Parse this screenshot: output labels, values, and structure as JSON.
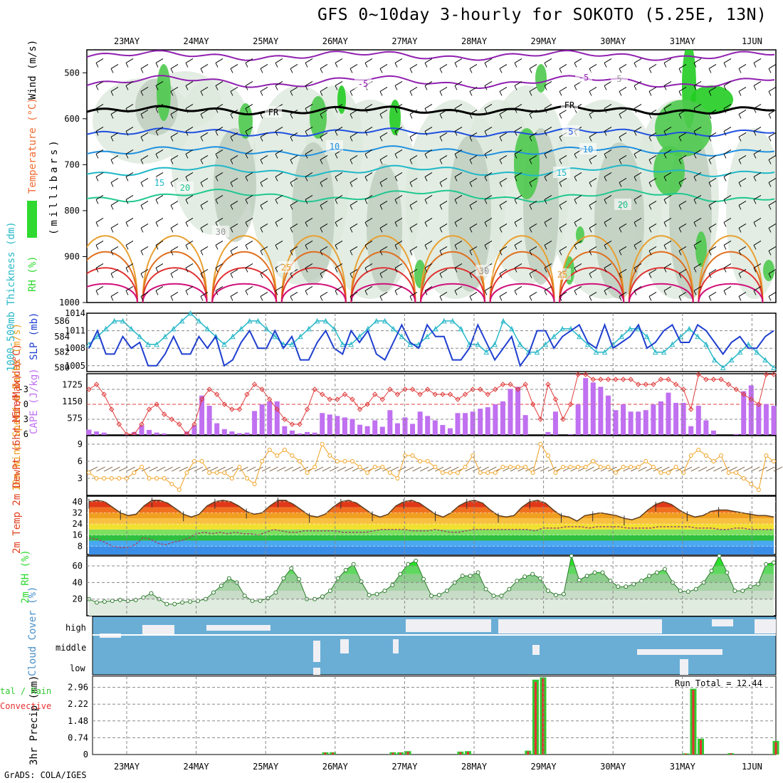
{
  "title": "GFS 0~10day 3-hourly for SOKOTO (5.25E, 13N)",
  "footer": "GrADS: COLA/IGES",
  "dates": [
    "23MAY",
    "24MAY",
    "25MAY",
    "26MAY",
    "27MAY",
    "28MAY",
    "29MAY",
    "30MAY",
    "31MAY",
    "1JUN"
  ],
  "colors": {
    "rh_green": "#2fd92f",
    "slp_blue": "#1f3fcf",
    "thick_cyan": "#28b8c8",
    "li_red": "#e03c3c",
    "cape_purple": "#c070f0",
    "wind_orange": "#f0a020",
    "rain_green": "#32c832",
    "conv_red": "#e83030",
    "cloud_blue": "#6aaed6"
  },
  "chart_data": [
    {
      "type": "heatmap",
      "panel": "cross-section",
      "ylabel_wind": "Wind (m/s)",
      "ylabel_temp": "Temperature (°C)",
      "ylabel_rh": "RH (%)",
      "ylabel_p": "(millibars)",
      "yticks": [
        500,
        600,
        700,
        800,
        900,
        1000
      ],
      "ylim": [
        1000,
        450
      ],
      "contour_labels": [
        "-5",
        "-5",
        "FR",
        "FR",
        "5",
        "10",
        "10",
        "15",
        "15",
        "20",
        "20",
        "25",
        "25",
        "30",
        "30",
        "5"
      ]
    },
    {
      "type": "line",
      "panel": "slp-thickness",
      "ylabel_left": "1000-500mb Thickness (dm)",
      "ylabel_right": "SLP (mb)",
      "yticks_left": [
        580,
        582,
        584,
        586
      ],
      "yticks_right": [
        1005,
        1008,
        1011,
        1014
      ],
      "series": [
        {
          "name": "SLP",
          "values": [
            1008,
            1011,
            1007,
            1007,
            1010,
            1008,
            1009,
            1005,
            1005,
            1007,
            1010,
            1007,
            1007,
            1010,
            1008,
            1010,
            1005,
            1006,
            1009,
            1011,
            1008,
            1008,
            1011,
            1008,
            1010,
            1006,
            1006,
            1009,
            1011,
            1008,
            1007,
            1011,
            1009,
            1011,
            1007,
            1006,
            1009,
            1012,
            1009,
            1008,
            1012,
            1010,
            1010,
            1006,
            1006,
            1008,
            1012,
            1009,
            1006,
            1008,
            1010,
            1005,
            1007,
            1011,
            1011,
            1008,
            1010,
            1011,
            1012,
            1009,
            1008,
            1012,
            1008,
            1009,
            1010,
            1012,
            1008,
            1009,
            1011,
            1012,
            1009,
            1009,
            1012,
            1011,
            1009,
            1007,
            1009,
            1010,
            1008,
            1008,
            1010,
            1011
          ]
        },
        {
          "name": "1000-500mb Thickness",
          "values": [
            583,
            584,
            585,
            586,
            586,
            585,
            584,
            583,
            583,
            584,
            585,
            586,
            587,
            586,
            585,
            584,
            583,
            584,
            585,
            586,
            586,
            585,
            584,
            583,
            583,
            584,
            585,
            586,
            586,
            585,
            583,
            583,
            584,
            585,
            586,
            586,
            585,
            584,
            583,
            583,
            584,
            585,
            586,
            586,
            585,
            583,
            583,
            582,
            583,
            586,
            585,
            583,
            582,
            582,
            583,
            584,
            585,
            585,
            584,
            583,
            582,
            582,
            583,
            584,
            585,
            585,
            584,
            582,
            582,
            583,
            584,
            585,
            584,
            583,
            581,
            580,
            581,
            582,
            583,
            582,
            581,
            580
          ]
        }
      ]
    },
    {
      "type": "bar",
      "panel": "cape-li",
      "ylabel_li": "Lifted Index",
      "ylabel_cape": "CAPE (J/kg)",
      "yticks_li": [
        "-3",
        "0",
        "3",
        "6"
      ],
      "yticks_cape": [
        "1725",
        "1150",
        "575"
      ],
      "series": [
        {
          "name": "CAPE",
          "values": [
            180,
            120,
            80,
            0,
            0,
            30,
            100,
            330,
            170,
            80,
            50,
            0,
            0,
            120,
            330,
            1350,
            1000,
            400,
            200,
            120,
            60,
            80,
            820,
            1050,
            1150,
            1150,
            300,
            150,
            50,
            100,
            80,
            750,
            700,
            650,
            600,
            550,
            350,
            300,
            500,
            280,
            850,
            400,
            600,
            380,
            800,
            650,
            500,
            340,
            230,
            750,
            750,
            800,
            900,
            950,
            1050,
            1150,
            1580,
            1650,
            680,
            0,
            0,
            100,
            800,
            0,
            20,
            1050,
            1950,
            1800,
            1650,
            1350,
            850,
            1050,
            800,
            800,
            850,
            1050,
            1150,
            1450,
            1100,
            1100,
            300,
            1000,
            500,
            150,
            0,
            0,
            30,
            1500,
            1700,
            1050,
            1060,
            1000
          ]
        },
        {
          "name": "Lifted Index",
          "values": [
            -3,
            -4,
            -2,
            1,
            4,
            6,
            6,
            4,
            1,
            0,
            2,
            3,
            4,
            6,
            4,
            -1,
            -3,
            -2,
            0,
            1,
            1,
            -2,
            -4,
            -3,
            -1,
            1,
            3,
            4,
            4,
            1,
            -3,
            -2,
            -1,
            -1,
            -2,
            -1,
            1,
            0,
            -2,
            -1,
            -3,
            -2,
            -3,
            -3,
            -2,
            -3,
            -2,
            -2,
            -2,
            -1,
            -2,
            -3,
            -3,
            -2,
            -3,
            -4,
            -4,
            -3,
            -4,
            0,
            3,
            -4,
            -1,
            3,
            0,
            -6,
            -6,
            -5,
            -5,
            -5,
            -5,
            -5,
            -5,
            -4,
            -4,
            -4,
            -5,
            -5,
            -4,
            -3,
            1,
            -6,
            -5,
            -5,
            -5,
            -4,
            -3,
            -2,
            -1,
            0,
            -6,
            -6
          ]
        }
      ]
    },
    {
      "type": "line",
      "panel": "10m-wind",
      "ylabel": "10m Wind Speed & Barbs (m/s)",
      "yticks": [
        3,
        6,
        9
      ],
      "series": [
        {
          "name": "10m Wind Speed",
          "values": [
            4,
            3,
            3,
            3,
            3,
            3,
            4,
            5,
            3,
            3,
            3,
            2,
            1,
            4,
            6,
            6,
            4,
            4,
            4,
            3,
            5,
            3,
            2,
            6,
            8,
            7,
            8,
            7,
            6,
            4,
            5,
            9,
            7,
            6,
            6,
            6,
            5,
            4,
            5,
            5,
            4,
            3,
            7,
            7,
            6,
            6,
            5,
            4,
            4,
            4,
            5,
            7,
            4,
            4,
            4,
            5,
            5,
            5,
            5,
            4,
            9,
            7,
            4,
            5,
            5,
            5,
            5,
            6,
            5,
            5,
            4,
            5,
            5,
            5,
            6,
            5,
            4,
            4,
            5,
            4,
            7,
            8,
            7,
            6,
            7,
            4,
            4,
            3,
            2,
            1,
            7,
            6
          ]
        }
      ]
    },
    {
      "type": "area",
      "panel": "2m-temp",
      "ylabel": "2m Temp 2m DewPt (6hr Min/Max) (°C)",
      "yticks": [
        8,
        16,
        24,
        32,
        40
      ],
      "series": [
        {
          "name": "2m Temp",
          "values": [
            40,
            41,
            40,
            36,
            32,
            30,
            31,
            37,
            41,
            41,
            39,
            35,
            31,
            29,
            31,
            37,
            40,
            41,
            40,
            37,
            33,
            31,
            32,
            37,
            41,
            41,
            38,
            34,
            30,
            29,
            31,
            36,
            40,
            41,
            39,
            35,
            31,
            29,
            31,
            37,
            40,
            41,
            39,
            35,
            31,
            29,
            32,
            37,
            40,
            41,
            39,
            34,
            30,
            29,
            30,
            36,
            40,
            41,
            39,
            34,
            30,
            29,
            26,
            30,
            31,
            32,
            31,
            30,
            28,
            27,
            29,
            34,
            38,
            40,
            38,
            34,
            31,
            29,
            30,
            33,
            34,
            34,
            33,
            32,
            31,
            30,
            30,
            29
          ]
        },
        {
          "name": "2m DewPt",
          "values": [
            14,
            13,
            11,
            8,
            7,
            7,
            9,
            14,
            13,
            10,
            9,
            11,
            12,
            14,
            17,
            18,
            17,
            18,
            17,
            18,
            17,
            17,
            16,
            18,
            20,
            19,
            18,
            18,
            19,
            19,
            19,
            19,
            19,
            18,
            18,
            18,
            18,
            19,
            20,
            20,
            20,
            20,
            19,
            19,
            19,
            20,
            19,
            18,
            18,
            19,
            20,
            20,
            20,
            20,
            20,
            20,
            20,
            20,
            19,
            21,
            21,
            21,
            22,
            22,
            22,
            21,
            22,
            22,
            22,
            22,
            21,
            21,
            21,
            21,
            22,
            22,
            22,
            22,
            22,
            21,
            21,
            21,
            20,
            20,
            21,
            21,
            20,
            20,
            20,
            20
          ]
        }
      ]
    },
    {
      "type": "area",
      "panel": "2m-rh",
      "ylabel": "2m RH (%)",
      "yticks": [
        20,
        40,
        60
      ],
      "series": [
        {
          "name": "2m RH",
          "values": [
            20,
            16,
            17,
            18,
            19,
            18,
            19,
            22,
            27,
            20,
            14,
            14,
            16,
            17,
            18,
            20,
            28,
            36,
            45,
            40,
            24,
            18,
            18,
            21,
            28,
            45,
            57,
            44,
            20,
            20,
            23,
            30,
            45,
            55,
            62,
            41,
            25,
            26,
            30,
            37,
            50,
            62,
            66,
            44,
            24,
            25,
            30,
            40,
            48,
            48,
            52,
            32,
            24,
            24,
            32,
            42,
            47,
            50,
            45,
            30,
            25,
            26,
            72,
            43,
            48,
            52,
            52,
            42,
            35,
            35,
            38,
            42,
            48,
            52,
            56,
            40,
            30,
            29,
            32,
            40,
            54,
            72,
            52,
            30,
            30,
            35,
            38,
            62,
            64
          ]
        }
      ]
    },
    {
      "type": "heatmap",
      "panel": "cloud-cover",
      "ylabel": "Cloud Cover (%)",
      "levels": [
        "high",
        "middle",
        "low"
      ]
    },
    {
      "type": "bar",
      "panel": "precip",
      "ylabel": "3hr Precip (mm)",
      "legend": "Total / Rain Convective",
      "annotation": "Run Total = 12.44",
      "yticks": [
        0,
        0.74,
        1.48,
        2.22,
        2.96
      ],
      "series": [
        {
          "name": "Total",
          "values": [
            0,
            0,
            0,
            0,
            0,
            0,
            0,
            0,
            0,
            0,
            0,
            0,
            0,
            0,
            0,
            0,
            0,
            0,
            0,
            0,
            0,
            0,
            0,
            0,
            0,
            0,
            0,
            0,
            0,
            0,
            0,
            0.1,
            0.1,
            0,
            0,
            0,
            0,
            0,
            0,
            0,
            0.1,
            0.1,
            0.15,
            0,
            0,
            0,
            0,
            0,
            0,
            0.13,
            0.15,
            0,
            0,
            0,
            0,
            0,
            0,
            0,
            0.17,
            3.3,
            3.4,
            0,
            0,
            0,
            0,
            0,
            0,
            0,
            0,
            0,
            0,
            0,
            0,
            0,
            0,
            0,
            0,
            0,
            0,
            0.05,
            2.9,
            0.7,
            0,
            0,
            0,
            0.06,
            0,
            0,
            0,
            0,
            0,
            0.6
          ]
        },
        {
          "name": "Convective",
          "values": [
            0,
            0,
            0,
            0,
            0,
            0,
            0,
            0,
            0,
            0,
            0,
            0,
            0,
            0,
            0,
            0,
            0,
            0,
            0,
            0,
            0,
            0,
            0,
            0,
            0,
            0,
            0,
            0,
            0,
            0,
            0,
            0.08,
            0.08,
            0,
            0,
            0,
            0,
            0,
            0,
            0,
            0.08,
            0.08,
            0.12,
            0,
            0,
            0,
            0,
            0,
            0,
            0.1,
            0.12,
            0,
            0,
            0,
            0,
            0,
            0,
            0,
            0.14,
            3.2,
            3.35,
            0,
            0,
            0,
            0,
            0,
            0,
            0,
            0,
            0,
            0,
            0,
            0,
            0,
            0,
            0,
            0,
            0,
            0,
            0.04,
            2.85,
            0.65,
            0,
            0,
            0,
            0.05,
            0,
            0,
            0,
            0,
            0,
            0.55
          ]
        }
      ]
    }
  ]
}
